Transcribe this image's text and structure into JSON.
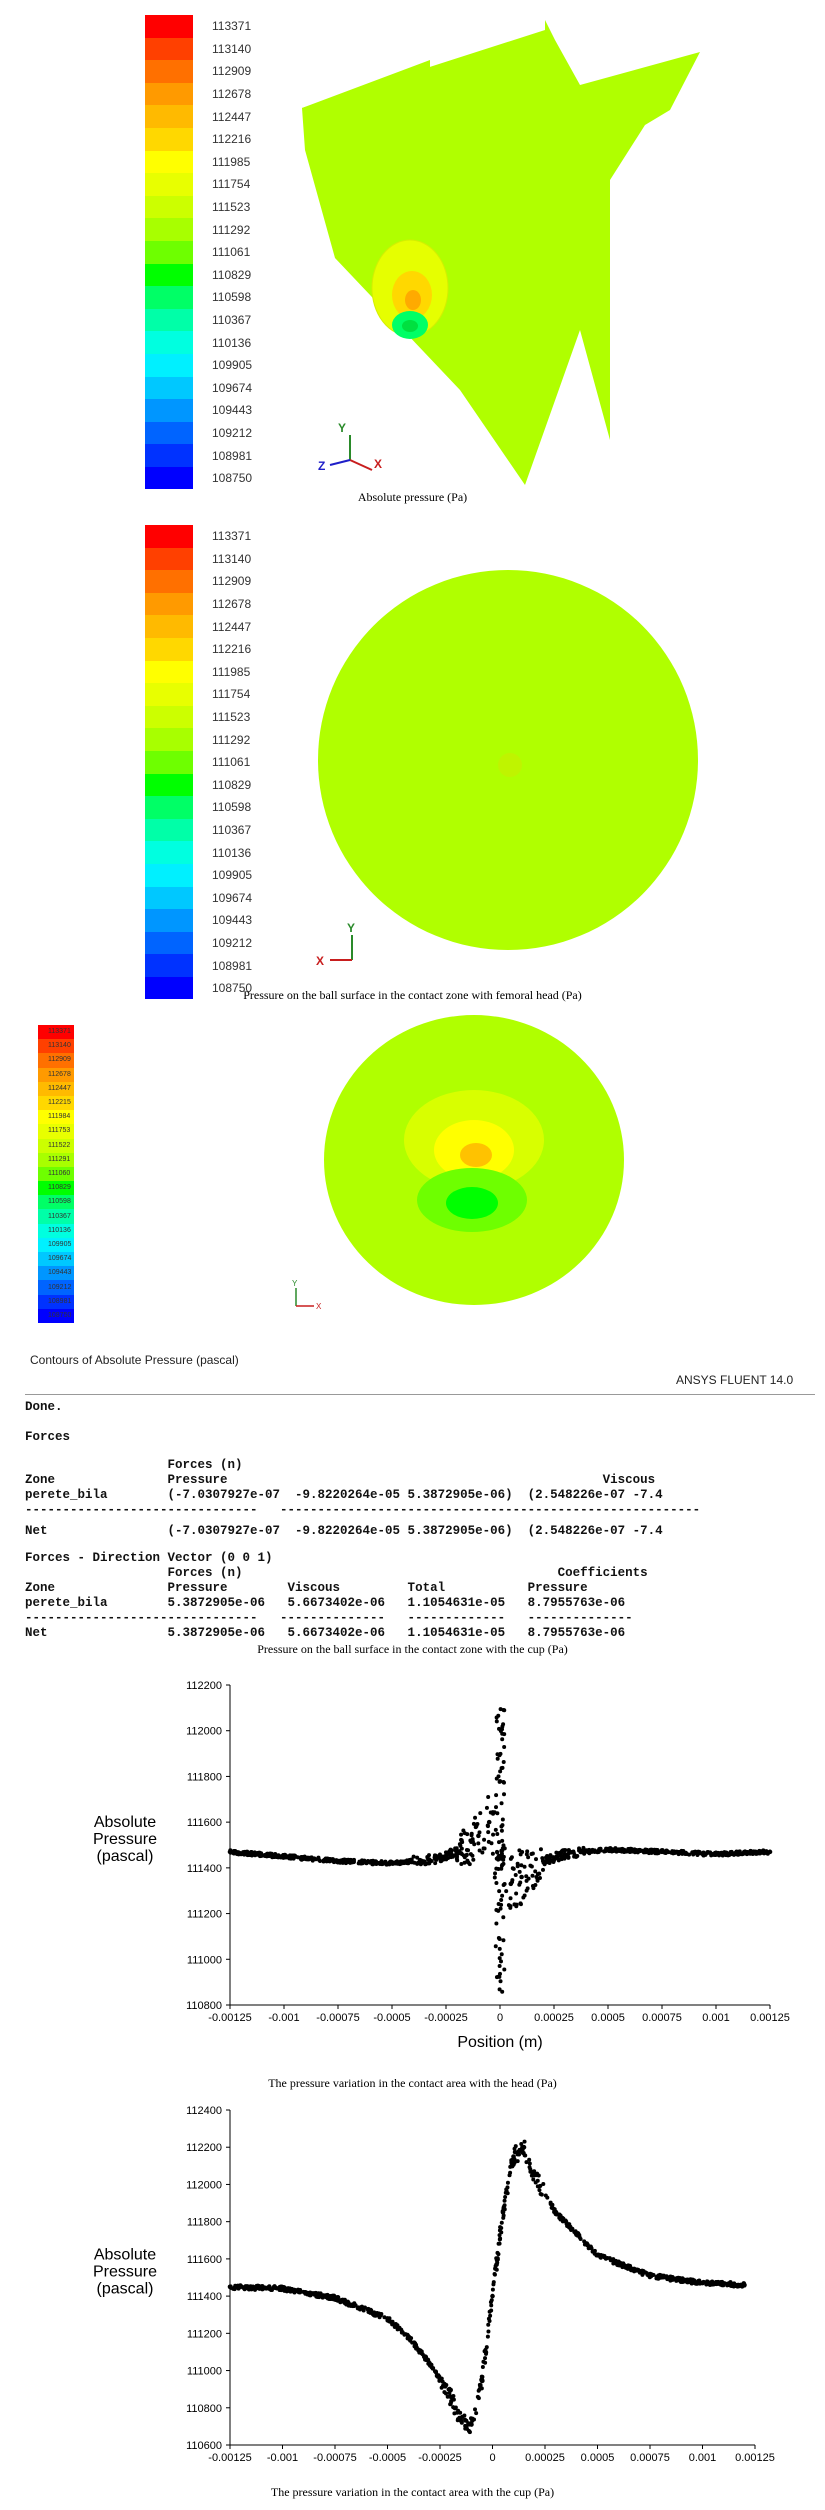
{
  "legend_levels": [
    "113371",
    "113140",
    "112909",
    "112678",
    "112447",
    "112216",
    "111985",
    "111754",
    "111523",
    "111292",
    "111061",
    "110829",
    "110598",
    "110367",
    "110136",
    "109905",
    "109674",
    "109443",
    "109212",
    "108981",
    "108750"
  ],
  "legend_levels_panel3": [
    "113371",
    "113140",
    "112909",
    "112678",
    "112447",
    "112215",
    "111984",
    "111753",
    "111522",
    "111291",
    "111060",
    "110829",
    "110598",
    "110367",
    "110136",
    "109905",
    "109674",
    "109443",
    "109212",
    "108981",
    "108750"
  ],
  "legend_colors": [
    "#ff0000",
    "#ff4000",
    "#ff7000",
    "#ff9a00",
    "#ffba00",
    "#ffd800",
    "#ffff00",
    "#e8ff00",
    "#ccff00",
    "#a8ff00",
    "#6eff00",
    "#00ff00",
    "#00ff66",
    "#00ffa8",
    "#00ffe0",
    "#00f0ff",
    "#00c8ff",
    "#0096ff",
    "#0064ff",
    "#0032ff",
    "#0000ff"
  ],
  "surface_color": "#b0ff00",
  "axes": {
    "x": "X",
    "y": "Y",
    "z": "Z"
  },
  "panel1": {
    "caption": "Absolute pressure (Pa)"
  },
  "panel2": {
    "caption": "Pressure on the ball surface in the contact zone with femoral head (Pa)"
  },
  "panel3": {
    "contours_title": "Contours of Absolute Pressure (pascal)",
    "software_label": "ANSYS FLUENT 14.0",
    "console": {
      "done": "Done.",
      "forces_heading": "Forces",
      "table1": {
        "header1": "                   Forces (n)",
        "header2": "Zone               Pressure                                                  Viscous",
        "row1": "perete_bila        (-7.0307927e-07  -9.8220264e-05 5.3872905e-06)  (2.548226e-07 -7.4",
        "sep": "-------------------------------   --------------------------------------------------------",
        "net": "Net                (-7.0307927e-07  -9.8220264e-05 5.3872905e-06)  (2.548226e-07 -7.4"
      },
      "table2": {
        "title": "Forces - Direction Vector (0 0 1)",
        "header1": "                   Forces (n)                                          Coefficients",
        "header2": "Zone               Pressure        Viscous         Total           Pressure",
        "row1": "perete_bila        5.3872905e-06   5.6673402e-06   1.1054631e-05   8.7955763e-06",
        "sep": "-------------------------------   --------------   -------------   --------------",
        "net": "Net                5.3872905e-06   5.6673402e-06   1.1054631e-05   8.7955763e-06"
      }
    },
    "caption": "Pressure on the ball surface in the contact zone with the cup (Pa)"
  },
  "chart_data": [
    {
      "type": "scatter",
      "xlabel": "Position (m)",
      "ylabel": "Absolute Pressure (pascal)",
      "xlim": [
        -0.00125,
        0.00125
      ],
      "ylim": [
        110800,
        112200
      ],
      "x_ticks": [
        "-0.00125",
        "-0.001",
        "-0.00075",
        "-0.0005",
        "-0.00025",
        "0",
        "0.00025",
        "0.0005",
        "0.00075",
        "0.001",
        "0.00125"
      ],
      "y_ticks": [
        "110800",
        "111000",
        "111200",
        "111400",
        "111600",
        "111800",
        "112000",
        "112200"
      ],
      "caption": "The pressure variation in the contact area with the head (Pa)",
      "x": [
        -0.00125,
        -0.001,
        -0.00075,
        -0.0005,
        -0.0003,
        -0.0002,
        -0.0001,
        -5e-05,
        0,
        5e-05,
        0.0001,
        0.0002,
        0.0003,
        0.0005,
        0.00075,
        0.001,
        0.00125
      ],
      "y": [
        111470,
        111450,
        111430,
        111420,
        111440,
        111470,
        111540,
        111600,
        111450,
        111330,
        111360,
        111430,
        111460,
        111480,
        111470,
        111460,
        111470
      ]
    },
    {
      "type": "scatter",
      "xlabel": "",
      "ylabel": "Absolute Pressure (pascal)",
      "xlim": [
        -0.00125,
        0.00125
      ],
      "ylim": [
        110600,
        112400
      ],
      "x_ticks": [
        "-0.00125",
        "-0.001",
        "-0.00075",
        "-0.0005",
        "-0.00025",
        "0",
        "0.00025",
        "0.0005",
        "0.00075",
        "0.001",
        "0.00125"
      ],
      "y_ticks": [
        "110600",
        "110800",
        "111000",
        "111200",
        "111400",
        "111600",
        "111800",
        "112000",
        "112200",
        "112400"
      ],
      "caption": "The pressure variation in the contact area with the cup (Pa)",
      "x": [
        -0.00125,
        -0.001,
        -0.00075,
        -0.0005,
        -0.0004,
        -0.0003,
        -0.0002,
        -0.00015,
        -0.0001,
        -5e-05,
        0,
        5e-05,
        0.0001,
        0.00015,
        0.0002,
        0.0003,
        0.0005,
        0.00075,
        0.001,
        0.0012
      ],
      "y": [
        111450,
        111440,
        111390,
        111280,
        111180,
        111040,
        110860,
        110730,
        110710,
        110950,
        111400,
        111850,
        112150,
        112200,
        112050,
        111850,
        111620,
        111510,
        111470,
        111460
      ]
    }
  ]
}
